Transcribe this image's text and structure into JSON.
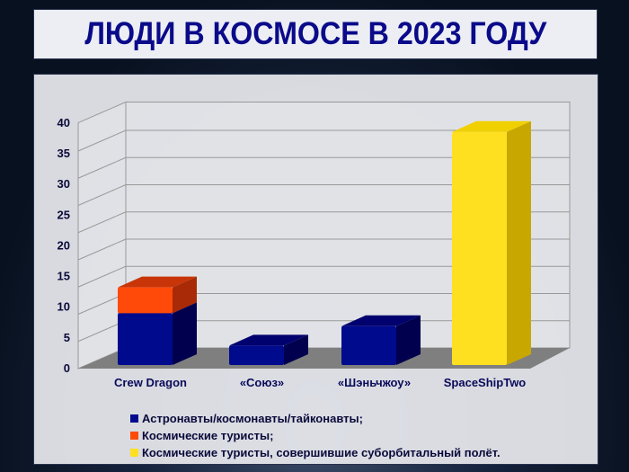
{
  "title": "ЛЮДИ В КОСМОСЕ В 2023 ГОДУ",
  "chart_data": {
    "type": "bar",
    "stacked": true,
    "three_d": true,
    "title": "ЛЮДИ В КОСМОСЕ В 2023 ГОДУ",
    "categories": [
      "Crew Dragon",
      "«Союз»",
      "«Шэньчжоу»",
      "SpaceShipTwo"
    ],
    "series": [
      {
        "name": "Астронавты/космонавты/тайконавты;",
        "color": "#000a8c",
        "values": [
          8,
          3,
          6,
          0
        ]
      },
      {
        "name": "Космические туристы;",
        "color": "#ff4a0a",
        "values": [
          4,
          0,
          0,
          0
        ]
      },
      {
        "name": "Космические туристы, совершившие суборбитальный полёт.",
        "color": "#ffe020",
        "values": [
          0,
          0,
          0,
          36
        ]
      }
    ],
    "yticks": [
      0,
      5,
      10,
      15,
      20,
      25,
      30,
      35,
      40
    ],
    "ylim": [
      0,
      40
    ],
    "grid": true,
    "legend_position": "bottom-left"
  }
}
